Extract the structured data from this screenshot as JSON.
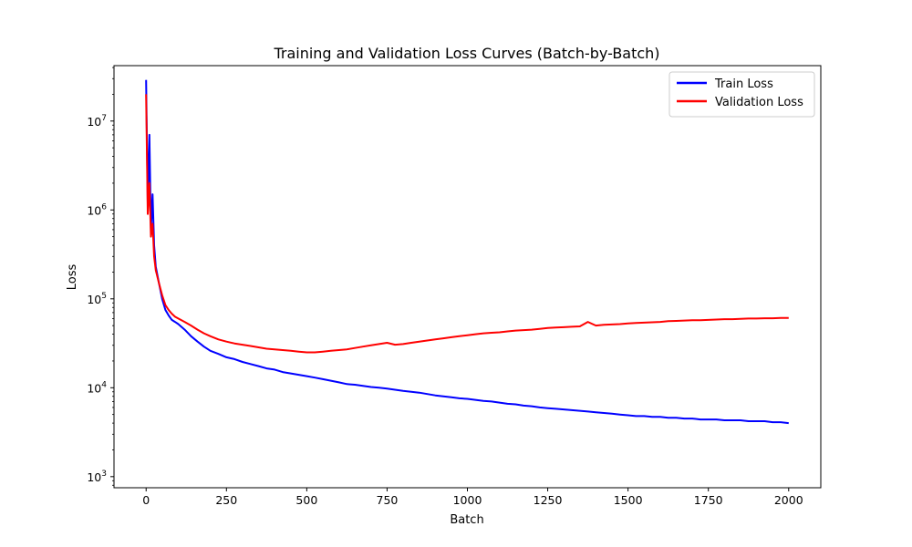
{
  "chart_data": {
    "type": "line",
    "title": "Training and Validation Loss Curves (Batch-by-Batch)",
    "xlabel": "Batch",
    "ylabel": "Loss",
    "xlim": [
      -100,
      2100
    ],
    "ylim": [
      750,
      42000000
    ],
    "y_scale": "log",
    "x_ticks": [
      0,
      250,
      500,
      750,
      1000,
      1250,
      1500,
      1750,
      2000
    ],
    "x_tick_labels": [
      "0",
      "250",
      "500",
      "750",
      "1000",
      "1250",
      "1500",
      "1750",
      "2000"
    ],
    "y_ticks": [
      1000,
      10000,
      100000,
      1000000,
      10000000
    ],
    "y_tick_labels": [
      {
        "base": "10",
        "exp": "3"
      },
      {
        "base": "10",
        "exp": "4"
      },
      {
        "base": "10",
        "exp": "5"
      },
      {
        "base": "10",
        "exp": "6"
      },
      {
        "base": "10",
        "exp": "7"
      }
    ],
    "grid": false,
    "legend_position": "top-right",
    "series": [
      {
        "name": "Train Loss",
        "color": "#0000ff",
        "x": [
          0,
          5,
          10,
          15,
          20,
          25,
          30,
          40,
          50,
          60,
          70,
          80,
          90,
          100,
          120,
          140,
          160,
          180,
          200,
          225,
          250,
          275,
          300,
          325,
          350,
          375,
          400,
          425,
          450,
          475,
          500,
          525,
          550,
          575,
          600,
          625,
          650,
          675,
          700,
          725,
          750,
          775,
          800,
          825,
          850,
          875,
          900,
          925,
          950,
          975,
          1000,
          1025,
          1050,
          1075,
          1100,
          1125,
          1150,
          1175,
          1200,
          1225,
          1250,
          1275,
          1300,
          1325,
          1350,
          1375,
          1400,
          1425,
          1450,
          1475,
          1500,
          1525,
          1550,
          1575,
          1600,
          1625,
          1650,
          1675,
          1700,
          1725,
          1750,
          1775,
          1800,
          1825,
          1850,
          1875,
          1900,
          1925,
          1950,
          1975,
          2000
        ],
        "y": [
          29000000,
          1200000,
          7000000,
          600000,
          1500000,
          400000,
          230000,
          150000,
          100000,
          75000,
          65000,
          58000,
          55000,
          52000,
          45000,
          38000,
          33000,
          29000,
          26000,
          24000,
          22000,
          21000,
          19500,
          18500,
          17500,
          16500,
          16000,
          15000,
          14500,
          14000,
          13500,
          13000,
          12500,
          12000,
          11500,
          11000,
          10800,
          10500,
          10200,
          10000,
          9800,
          9500,
          9200,
          9000,
          8800,
          8500,
          8200,
          8000,
          7800,
          7600,
          7500,
          7300,
          7100,
          7000,
          6800,
          6600,
          6500,
          6300,
          6200,
          6000,
          5900,
          5800,
          5700,
          5600,
          5500,
          5400,
          5300,
          5200,
          5100,
          5000,
          4900,
          4800,
          4800,
          4700,
          4700,
          4600,
          4600,
          4500,
          4500,
          4400,
          4400,
          4400,
          4300,
          4300,
          4300,
          4200,
          4200,
          4200,
          4100,
          4100,
          4000
        ]
      },
      {
        "name": "Validation Loss",
        "color": "#ff0000",
        "x": [
          0,
          5,
          10,
          15,
          20,
          25,
          30,
          40,
          50,
          60,
          70,
          80,
          90,
          100,
          120,
          140,
          160,
          180,
          200,
          225,
          250,
          275,
          300,
          325,
          350,
          375,
          400,
          425,
          450,
          475,
          500,
          525,
          550,
          575,
          600,
          625,
          650,
          675,
          700,
          725,
          750,
          775,
          800,
          825,
          850,
          875,
          900,
          925,
          950,
          975,
          1000,
          1025,
          1050,
          1075,
          1100,
          1125,
          1150,
          1175,
          1200,
          1225,
          1250,
          1275,
          1300,
          1325,
          1350,
          1375,
          1400,
          1425,
          1450,
          1475,
          1500,
          1525,
          1550,
          1575,
          1600,
          1625,
          1650,
          1675,
          1700,
          1725,
          1750,
          1775,
          1800,
          1825,
          1850,
          1875,
          1900,
          1925,
          1950,
          1975,
          2000
        ],
        "y": [
          20000000,
          900000,
          2000000,
          500000,
          700000,
          300000,
          210000,
          150000,
          110000,
          85000,
          75000,
          68000,
          63000,
          60000,
          55000,
          50000,
          45000,
          41000,
          38000,
          35000,
          33000,
          31500,
          30500,
          29500,
          28500,
          27500,
          27000,
          26500,
          26000,
          25500,
          25000,
          25000,
          25500,
          26000,
          26500,
          27000,
          28000,
          29000,
          30000,
          31000,
          32000,
          30500,
          31000,
          32000,
          33000,
          34000,
          35000,
          36000,
          37000,
          38000,
          39000,
          40000,
          41000,
          41500,
          42000,
          43000,
          44000,
          44500,
          45000,
          46000,
          47000,
          47500,
          48000,
          48500,
          49000,
          55000,
          50000,
          51000,
          51500,
          52000,
          53000,
          53500,
          54000,
          54500,
          55000,
          56000,
          56500,
          57000,
          57500,
          57500,
          58000,
          58500,
          59000,
          59000,
          59500,
          60000,
          60000,
          60500,
          60500,
          61000,
          61000
        ]
      }
    ]
  }
}
